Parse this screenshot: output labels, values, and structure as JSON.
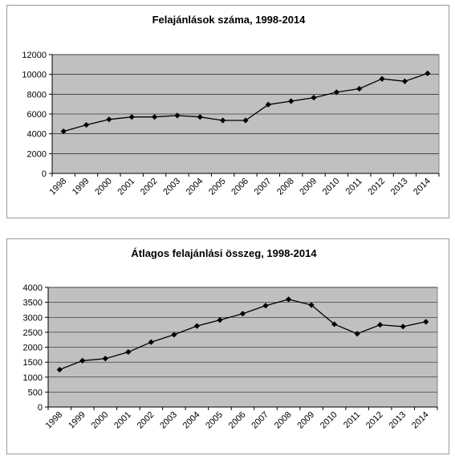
{
  "chart_data": [
    {
      "type": "line",
      "title": "Felajánlások száma, 1998-2014",
      "xlabel": "",
      "ylabel": "",
      "categories": [
        "1998",
        "1999",
        "2000",
        "2001",
        "2002",
        "2003",
        "2004",
        "2005",
        "2006",
        "2007",
        "2008",
        "2009",
        "2010",
        "2011",
        "2012",
        "2013",
        "2014"
      ],
      "series": [
        {
          "values": [
            4250,
            4900,
            5450,
            5700,
            5700,
            5850,
            5700,
            5350,
            5350,
            6950,
            7300,
            7650,
            8200,
            8550,
            9550,
            9300,
            10100
          ]
        }
      ],
      "ylim": [
        0,
        12000
      ],
      "yticks": [
        "0",
        "2000",
        "4000",
        "6000",
        "8000",
        "10000",
        "12000"
      ],
      "grid": true,
      "legend": "none",
      "colors": {
        "plot_background": "#c0c0c0",
        "series": "#000000"
      }
    },
    {
      "type": "line",
      "title": "Átlagos felajánlási összeg, 1998-2014",
      "xlabel": "",
      "ylabel": "",
      "categories": [
        "1998",
        "1999",
        "2000",
        "2001",
        "2002",
        "2003",
        "2004",
        "2005",
        "2006",
        "2007",
        "2008",
        "2009",
        "2010",
        "2011",
        "2012",
        "2013",
        "2014"
      ],
      "series": [
        {
          "values": [
            1250,
            1550,
            1620,
            1840,
            2170,
            2420,
            2710,
            2910,
            3120,
            3390,
            3600,
            3410,
            2770,
            2450,
            2750,
            2690,
            2850
          ]
        }
      ],
      "ylim": [
        0,
        4000
      ],
      "yticks": [
        "0",
        "500",
        "1000",
        "1500",
        "2000",
        "2500",
        "3000",
        "3500",
        "4000"
      ],
      "grid": true,
      "legend": "none",
      "colors": {
        "plot_background": "#c0c0c0",
        "series": "#000000"
      }
    }
  ]
}
